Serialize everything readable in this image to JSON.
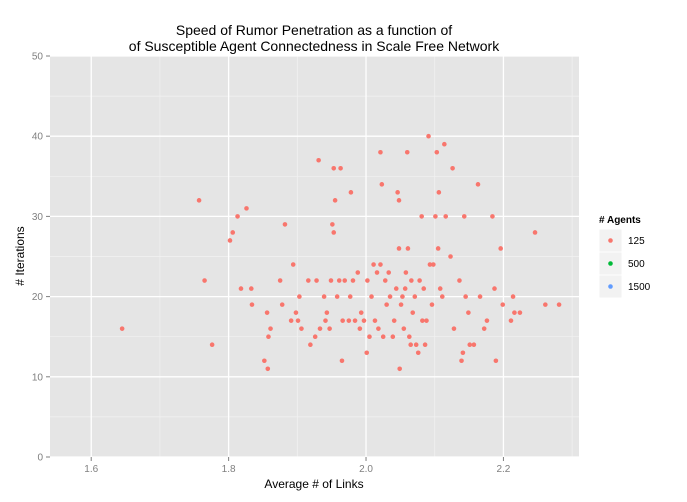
{
  "chart_data": {
    "type": "scatter",
    "title": [
      "Speed of Rumor Penetration as a function of",
      "of Susceptible Agent Connectedness in Scale Free Network"
    ],
    "xlabel": "Average # of Links",
    "ylabel": "# Iterations",
    "xlim": [
      1.54,
      2.31
    ],
    "ylim": [
      0,
      50
    ],
    "x_ticks": [
      1.6,
      1.8,
      2.0,
      2.2
    ],
    "x_tick_labels": [
      "1.6",
      "1.8",
      "2.0",
      "2.2"
    ],
    "y_ticks": [
      0,
      10,
      20,
      30,
      40,
      50
    ],
    "y_tick_labels": [
      "0",
      "10",
      "20",
      "30",
      "40",
      "50"
    ],
    "grid": true,
    "legend": {
      "title": "# Agents",
      "position": "right",
      "entries": [
        {
          "label": "125",
          "color": "#F8766D"
        },
        {
          "label": "500",
          "color": "#00BA38"
        },
        {
          "label": "1500",
          "color": "#619CFF"
        }
      ]
    },
    "series": [
      {
        "name": "125",
        "color": "#F8766D",
        "points": [
          [
            1.645,
            16
          ],
          [
            1.757,
            32
          ],
          [
            1.765,
            22
          ],
          [
            1.776,
            14
          ],
          [
            1.802,
            27
          ],
          [
            1.806,
            28
          ],
          [
            1.813,
            30
          ],
          [
            1.818,
            21
          ],
          [
            1.826,
            31
          ],
          [
            1.833,
            21
          ],
          [
            1.834,
            19
          ],
          [
            1.852,
            12
          ],
          [
            1.856,
            18
          ],
          [
            1.857,
            11
          ],
          [
            1.858,
            15
          ],
          [
            1.861,
            16
          ],
          [
            1.875,
            22
          ],
          [
            1.878,
            19
          ],
          [
            1.882,
            29
          ],
          [
            1.891,
            17
          ],
          [
            1.894,
            24
          ],
          [
            1.898,
            18
          ],
          [
            1.901,
            17
          ],
          [
            1.903,
            20
          ],
          [
            1.906,
            16
          ],
          [
            1.916,
            22
          ],
          [
            1.919,
            14
          ],
          [
            1.926,
            15
          ],
          [
            1.928,
            22
          ],
          [
            1.931,
            37
          ],
          [
            1.933,
            16
          ],
          [
            1.939,
            20
          ],
          [
            1.941,
            17
          ],
          [
            1.943,
            18
          ],
          [
            1.947,
            16
          ],
          [
            1.949,
            22
          ],
          [
            1.951,
            29
          ],
          [
            1.953,
            36
          ],
          [
            1.953,
            28
          ],
          [
            1.955,
            32
          ],
          [
            1.958,
            20
          ],
          [
            1.961,
            22
          ],
          [
            1.963,
            36
          ],
          [
            1.965,
            12
          ],
          [
            1.966,
            17
          ],
          [
            1.969,
            22
          ],
          [
            1.975,
            17
          ],
          [
            1.977,
            20
          ],
          [
            1.978,
            33
          ],
          [
            1.981,
            22
          ],
          [
            1.984,
            17
          ],
          [
            1.988,
            23
          ],
          [
            1.991,
            16
          ],
          [
            1.993,
            18
          ],
          [
            1.997,
            17
          ],
          [
            2.001,
            13
          ],
          [
            2.002,
            22
          ],
          [
            2.005,
            15
          ],
          [
            2.008,
            20
          ],
          [
            2.011,
            24
          ],
          [
            2.013,
            17
          ],
          [
            2.016,
            23
          ],
          [
            2.018,
            16
          ],
          [
            2.021,
            38
          ],
          [
            2.021,
            24
          ],
          [
            2.023,
            34
          ],
          [
            2.025,
            15
          ],
          [
            2.028,
            22
          ],
          [
            2.03,
            19
          ],
          [
            2.033,
            23
          ],
          [
            2.035,
            20
          ],
          [
            2.039,
            15
          ],
          [
            2.041,
            17
          ],
          [
            2.044,
            21
          ],
          [
            2.046,
            33
          ],
          [
            2.048,
            32
          ],
          [
            2.048,
            26
          ],
          [
            2.049,
            11
          ],
          [
            2.051,
            19
          ],
          [
            2.053,
            20
          ],
          [
            2.055,
            16
          ],
          [
            2.057,
            21
          ],
          [
            2.058,
            23
          ],
          [
            2.06,
            38
          ],
          [
            2.061,
            26
          ],
          [
            2.063,
            15
          ],
          [
            2.065,
            14
          ],
          [
            2.066,
            22
          ],
          [
            2.068,
            18
          ],
          [
            2.071,
            20
          ],
          [
            2.073,
            14
          ],
          [
            2.076,
            13
          ],
          [
            2.078,
            22
          ],
          [
            2.081,
            30
          ],
          [
            2.082,
            17
          ],
          [
            2.084,
            21
          ],
          [
            2.086,
            14
          ],
          [
            2.088,
            17
          ],
          [
            2.091,
            40
          ],
          [
            2.093,
            24
          ],
          [
            2.096,
            19
          ],
          [
            2.098,
            24
          ],
          [
            2.101,
            30
          ],
          [
            2.103,
            38
          ],
          [
            2.105,
            26
          ],
          [
            2.106,
            33
          ],
          [
            2.108,
            21
          ],
          [
            2.111,
            20
          ],
          [
            2.114,
            39
          ],
          [
            2.116,
            30
          ],
          [
            2.123,
            25
          ],
          [
            2.126,
            36
          ],
          [
            2.128,
            16
          ],
          [
            2.136,
            22
          ],
          [
            2.139,
            12
          ],
          [
            2.141,
            13
          ],
          [
            2.143,
            30
          ],
          [
            2.145,
            20
          ],
          [
            2.149,
            18
          ],
          [
            2.151,
            14
          ],
          [
            2.157,
            14
          ],
          [
            2.163,
            34
          ],
          [
            2.166,
            20
          ],
          [
            2.172,
            16
          ],
          [
            2.176,
            17
          ],
          [
            2.184,
            30
          ],
          [
            2.187,
            21
          ],
          [
            2.189,
            12
          ],
          [
            2.196,
            26
          ],
          [
            2.199,
            19
          ],
          [
            2.211,
            17
          ],
          [
            2.214,
            20
          ],
          [
            2.216,
            18
          ],
          [
            2.224,
            18
          ],
          [
            2.246,
            28
          ],
          [
            2.261,
            19
          ],
          [
            2.281,
            19
          ]
        ]
      },
      {
        "name": "500",
        "color": "#00BA38",
        "points": []
      },
      {
        "name": "1500",
        "color": "#619CFF",
        "points": []
      }
    ]
  }
}
